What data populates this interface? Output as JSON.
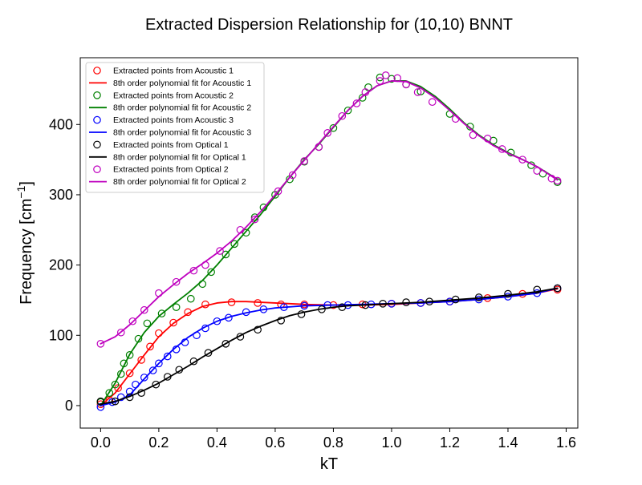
{
  "chart_data": {
    "type": "scatter",
    "title": "Extracted Dispersion Relationship for (10,10) BNNT",
    "xlabel": "kT",
    "ylabel": "Frequency [cm",
    "ylabel_sup": "−1",
    "ylabel_end": "]",
    "xlim": [
      -0.07,
      1.64
    ],
    "ylim": [
      -32,
      495
    ],
    "xticks": [
      0.0,
      0.2,
      0.4,
      0.6,
      0.8,
      1.0,
      1.2,
      1.4,
      1.6
    ],
    "xtick_labels": [
      "0.0",
      "0.2",
      "0.4",
      "0.6",
      "0.8",
      "1.0",
      "1.2",
      "1.4",
      "1.6"
    ],
    "yticks": [
      0,
      100,
      200,
      300,
      400
    ],
    "ytick_labels": [
      "0",
      "100",
      "200",
      "300",
      "400"
    ],
    "grid": false,
    "legend_position": "top-left",
    "series": [
      {
        "name": "Extracted points from Acoustic 1",
        "fit_name": "8th order polynomial fit for Acoustic 1",
        "color": "#ff0000",
        "points": [
          [
            0.0,
            2
          ],
          [
            0.03,
            8
          ],
          [
            0.06,
            25
          ],
          [
            0.1,
            46
          ],
          [
            0.14,
            65
          ],
          [
            0.17,
            84
          ],
          [
            0.2,
            103
          ],
          [
            0.25,
            118
          ],
          [
            0.3,
            133
          ],
          [
            0.36,
            144
          ],
          [
            0.45,
            147
          ],
          [
            0.54,
            146
          ],
          [
            0.62,
            144
          ],
          [
            0.7,
            144
          ],
          [
            0.8,
            143
          ],
          [
            0.9,
            144
          ],
          [
            1.0,
            145
          ],
          [
            1.1,
            146
          ],
          [
            1.2,
            148
          ],
          [
            1.33,
            153
          ],
          [
            1.45,
            159
          ],
          [
            1.57,
            165
          ]
        ],
        "fit": [
          [
            0.0,
            0
          ],
          [
            0.05,
            18
          ],
          [
            0.1,
            45
          ],
          [
            0.15,
            72
          ],
          [
            0.2,
            98
          ],
          [
            0.25,
            117
          ],
          [
            0.3,
            131
          ],
          [
            0.35,
            141
          ],
          [
            0.4,
            146
          ],
          [
            0.45,
            148
          ],
          [
            0.5,
            148
          ],
          [
            0.6,
            146
          ],
          [
            0.7,
            144
          ],
          [
            0.8,
            143
          ],
          [
            0.9,
            143
          ],
          [
            1.0,
            144
          ],
          [
            1.1,
            146
          ],
          [
            1.2,
            148
          ],
          [
            1.3,
            151
          ],
          [
            1.4,
            155
          ],
          [
            1.5,
            160
          ],
          [
            1.57,
            166
          ]
        ]
      },
      {
        "name": "Extracted points from Acoustic 2",
        "fit_name": "8th order polynomial fit for Acoustic 2",
        "color": "#008000",
        "points": [
          [
            0.0,
            5
          ],
          [
            0.03,
            18
          ],
          [
            0.05,
            30
          ],
          [
            0.07,
            45
          ],
          [
            0.08,
            60
          ],
          [
            0.1,
            72
          ],
          [
            0.13,
            95
          ],
          [
            0.16,
            117
          ],
          [
            0.21,
            131
          ],
          [
            0.26,
            140
          ],
          [
            0.31,
            152
          ],
          [
            0.35,
            173
          ],
          [
            0.38,
            190
          ],
          [
            0.43,
            215
          ],
          [
            0.46,
            230
          ],
          [
            0.5,
            246
          ],
          [
            0.53,
            268
          ],
          [
            0.56,
            282
          ],
          [
            0.6,
            300
          ],
          [
            0.65,
            322
          ],
          [
            0.7,
            347
          ],
          [
            0.75,
            368
          ],
          [
            0.8,
            395
          ],
          [
            0.85,
            420
          ],
          [
            0.9,
            438
          ],
          [
            0.92,
            453
          ],
          [
            0.96,
            467
          ],
          [
            1.0,
            465
          ],
          [
            1.05,
            457
          ],
          [
            1.1,
            447
          ],
          [
            1.2,
            415
          ],
          [
            1.27,
            397
          ],
          [
            1.35,
            377
          ],
          [
            1.41,
            360
          ],
          [
            1.48,
            342
          ],
          [
            1.52,
            330
          ],
          [
            1.57,
            318
          ]
        ],
        "fit": [
          [
            0.0,
            0
          ],
          [
            0.05,
            32
          ],
          [
            0.1,
            73
          ],
          [
            0.15,
            104
          ],
          [
            0.2,
            127
          ],
          [
            0.25,
            144
          ],
          [
            0.3,
            160
          ],
          [
            0.35,
            178
          ],
          [
            0.4,
            200
          ],
          [
            0.45,
            224
          ],
          [
            0.5,
            248
          ],
          [
            0.55,
            272
          ],
          [
            0.6,
            298
          ],
          [
            0.65,
            325
          ],
          [
            0.7,
            350
          ],
          [
            0.75,
            372
          ],
          [
            0.8,
            396
          ],
          [
            0.85,
            420
          ],
          [
            0.9,
            440
          ],
          [
            0.95,
            455
          ],
          [
            1.0,
            462
          ],
          [
            1.05,
            462
          ],
          [
            1.1,
            454
          ],
          [
            1.15,
            440
          ],
          [
            1.2,
            422
          ],
          [
            1.25,
            402
          ],
          [
            1.3,
            385
          ],
          [
            1.35,
            371
          ],
          [
            1.4,
            360
          ],
          [
            1.45,
            350
          ],
          [
            1.5,
            340
          ],
          [
            1.57,
            322
          ]
        ]
      },
      {
        "name": "Extracted points from Acoustic 3",
        "fit_name": "8th order polynomial fit for Acoustic 3",
        "color": "#0000ff",
        "points": [
          [
            0.0,
            -2
          ],
          [
            0.04,
            5
          ],
          [
            0.07,
            12
          ],
          [
            0.1,
            20
          ],
          [
            0.12,
            30
          ],
          [
            0.15,
            40
          ],
          [
            0.18,
            50
          ],
          [
            0.2,
            60
          ],
          [
            0.23,
            70
          ],
          [
            0.26,
            80
          ],
          [
            0.29,
            90
          ],
          [
            0.33,
            100
          ],
          [
            0.36,
            110
          ],
          [
            0.4,
            120
          ],
          [
            0.44,
            125
          ],
          [
            0.5,
            133
          ],
          [
            0.56,
            137
          ],
          [
            0.63,
            140
          ],
          [
            0.7,
            142
          ],
          [
            0.78,
            143
          ],
          [
            0.85,
            143
          ],
          [
            0.93,
            144
          ],
          [
            1.0,
            145
          ],
          [
            1.1,
            146
          ],
          [
            1.2,
            148
          ],
          [
            1.3,
            151
          ],
          [
            1.4,
            155
          ],
          [
            1.5,
            160
          ],
          [
            1.57,
            167
          ]
        ],
        "fit": [
          [
            0.0,
            0
          ],
          [
            0.05,
            5
          ],
          [
            0.1,
            15
          ],
          [
            0.15,
            38
          ],
          [
            0.2,
            60
          ],
          [
            0.25,
            80
          ],
          [
            0.3,
            97
          ],
          [
            0.35,
            110
          ],
          [
            0.4,
            120
          ],
          [
            0.45,
            127
          ],
          [
            0.5,
            132
          ],
          [
            0.55,
            136
          ],
          [
            0.6,
            139
          ],
          [
            0.7,
            142
          ],
          [
            0.8,
            143
          ],
          [
            0.9,
            144
          ],
          [
            1.0,
            145
          ],
          [
            1.1,
            146
          ],
          [
            1.2,
            148
          ],
          [
            1.3,
            151
          ],
          [
            1.4,
            155
          ],
          [
            1.5,
            160
          ],
          [
            1.57,
            167
          ]
        ]
      },
      {
        "name": "Extracted points from Optical 1",
        "fit_name": "8th order polynomial fit for Optical 1",
        "color": "#000000",
        "points": [
          [
            0.0,
            6
          ],
          [
            0.05,
            6
          ],
          [
            0.1,
            12
          ],
          [
            0.14,
            18
          ],
          [
            0.19,
            30
          ],
          [
            0.23,
            41
          ],
          [
            0.27,
            51
          ],
          [
            0.32,
            63
          ],
          [
            0.37,
            75
          ],
          [
            0.43,
            88
          ],
          [
            0.48,
            98
          ],
          [
            0.54,
            108
          ],
          [
            0.62,
            121
          ],
          [
            0.69,
            130
          ],
          [
            0.76,
            137
          ],
          [
            0.83,
            140
          ],
          [
            0.91,
            143
          ],
          [
            0.97,
            145
          ],
          [
            1.05,
            147
          ],
          [
            1.13,
            148
          ],
          [
            1.22,
            151
          ],
          [
            1.3,
            154
          ],
          [
            1.4,
            159
          ],
          [
            1.5,
            165
          ],
          [
            1.57,
            167
          ]
        ],
        "fit": [
          [
            0.0,
            2
          ],
          [
            0.05,
            6
          ],
          [
            0.1,
            13
          ],
          [
            0.15,
            22
          ],
          [
            0.2,
            32
          ],
          [
            0.25,
            44
          ],
          [
            0.3,
            56
          ],
          [
            0.35,
            69
          ],
          [
            0.4,
            81
          ],
          [
            0.45,
            93
          ],
          [
            0.5,
            104
          ],
          [
            0.55,
            113
          ],
          [
            0.6,
            121
          ],
          [
            0.65,
            128
          ],
          [
            0.7,
            133
          ],
          [
            0.75,
            137
          ],
          [
            0.8,
            140
          ],
          [
            0.85,
            142
          ],
          [
            0.9,
            143
          ],
          [
            1.0,
            145
          ],
          [
            1.1,
            147
          ],
          [
            1.2,
            150
          ],
          [
            1.3,
            153
          ],
          [
            1.4,
            157
          ],
          [
            1.5,
            162
          ],
          [
            1.57,
            167
          ]
        ]
      },
      {
        "name": "Extracted points from Optical 2",
        "fit_name": "8th order polynomial fit for Optical 2",
        "color": "#bf00bf",
        "points": [
          [
            0.0,
            88
          ],
          [
            0.07,
            104
          ],
          [
            0.11,
            120
          ],
          [
            0.15,
            136
          ],
          [
            0.2,
            160
          ],
          [
            0.26,
            176
          ],
          [
            0.32,
            192
          ],
          [
            0.36,
            200
          ],
          [
            0.41,
            220
          ],
          [
            0.48,
            250
          ],
          [
            0.53,
            265
          ],
          [
            0.61,
            305
          ],
          [
            0.66,
            328
          ],
          [
            0.7,
            348
          ],
          [
            0.75,
            368
          ],
          [
            0.78,
            388
          ],
          [
            0.83,
            412
          ],
          [
            0.88,
            430
          ],
          [
            0.91,
            446
          ],
          [
            0.96,
            462
          ],
          [
            0.98,
            470
          ],
          [
            1.02,
            466
          ],
          [
            1.05,
            457
          ],
          [
            1.09,
            446
          ],
          [
            1.14,
            432
          ],
          [
            1.22,
            408
          ],
          [
            1.28,
            385
          ],
          [
            1.33,
            380
          ],
          [
            1.38,
            365
          ],
          [
            1.45,
            350
          ],
          [
            1.5,
            334
          ],
          [
            1.55,
            323
          ],
          [
            1.57,
            320
          ]
        ],
        "fit": [
          [
            0.0,
            88
          ],
          [
            0.05,
            98
          ],
          [
            0.1,
            115
          ],
          [
            0.15,
            135
          ],
          [
            0.2,
            155
          ],
          [
            0.25,
            172
          ],
          [
            0.3,
            188
          ],
          [
            0.35,
            202
          ],
          [
            0.4,
            217
          ],
          [
            0.45,
            234
          ],
          [
            0.5,
            254
          ],
          [
            0.55,
            276
          ],
          [
            0.6,
            300
          ],
          [
            0.65,
            325
          ],
          [
            0.7,
            349
          ],
          [
            0.75,
            373
          ],
          [
            0.8,
            397
          ],
          [
            0.85,
            420
          ],
          [
            0.9,
            440
          ],
          [
            0.95,
            455
          ],
          [
            1.0,
            462
          ],
          [
            1.05,
            461
          ],
          [
            1.1,
            452
          ],
          [
            1.15,
            438
          ],
          [
            1.2,
            420
          ],
          [
            1.25,
            401
          ],
          [
            1.3,
            384
          ],
          [
            1.35,
            370
          ],
          [
            1.4,
            359
          ],
          [
            1.45,
            350
          ],
          [
            1.5,
            340
          ],
          [
            1.57,
            321
          ]
        ]
      }
    ]
  }
}
